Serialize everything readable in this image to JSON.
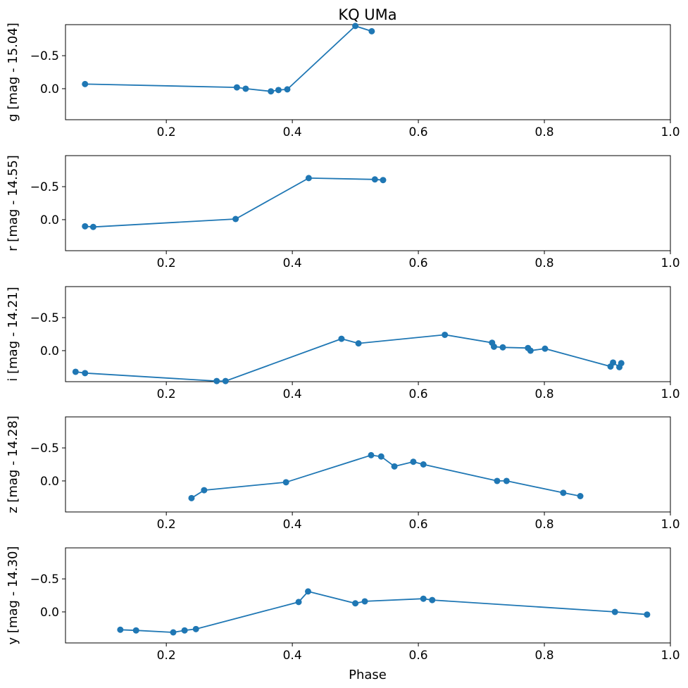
{
  "figure": {
    "title": "KQ UMa",
    "xlabel": "Phase"
  },
  "style": {
    "line_color": "#1f77b4",
    "axis_color": "#000000",
    "background": "#ffffff"
  },
  "chart_data": [
    {
      "type": "line",
      "band": "g",
      "ylabel": "g [mag - 15.04]",
      "xlim": [
        0.04,
        1.0
      ],
      "ylim": [
        0.47,
        -0.97
      ],
      "y_inverted": true,
      "xticks": [
        0.2,
        0.4,
        0.6,
        0.8,
        1.0
      ],
      "xtick_labels": [
        "0.2",
        "0.4",
        "0.6",
        "0.8",
        "1.0"
      ],
      "yticks": [
        -0.5,
        0.0
      ],
      "ytick_labels": [
        "−0.5",
        "0.0"
      ],
      "markers": true,
      "grid": false,
      "x": [
        0.071,
        0.312,
        0.326,
        0.366,
        0.378,
        0.392,
        0.5,
        0.526
      ],
      "y": [
        -0.07,
        -0.02,
        0.0,
        0.04,
        0.02,
        0.01,
        -0.95,
        -0.87
      ]
    },
    {
      "type": "line",
      "band": "r",
      "ylabel": "r [mag - 14.55]",
      "xlim": [
        0.04,
        1.0
      ],
      "ylim": [
        0.47,
        -0.97
      ],
      "y_inverted": true,
      "xticks": [
        0.2,
        0.4,
        0.6,
        0.8,
        1.0
      ],
      "xtick_labels": [
        "0.2",
        "0.4",
        "0.6",
        "0.8",
        "1.0"
      ],
      "yticks": [
        -0.5,
        0.0
      ],
      "ytick_labels": [
        "−0.5",
        "0.0"
      ],
      "markers": true,
      "grid": false,
      "x": [
        0.071,
        0.084,
        0.31,
        0.426,
        0.531,
        0.544
      ],
      "y": [
        0.1,
        0.11,
        -0.01,
        -0.63,
        -0.61,
        -0.6
      ]
    },
    {
      "type": "line",
      "band": "i",
      "ylabel": "i [mag - 14.21]",
      "xlim": [
        0.04,
        1.0
      ],
      "ylim": [
        0.47,
        -0.97
      ],
      "y_inverted": true,
      "xticks": [
        0.2,
        0.4,
        0.6,
        0.8,
        1.0
      ],
      "xtick_labels": [
        "0.2",
        "0.4",
        "0.6",
        "0.8",
        "1.0"
      ],
      "yticks": [
        -0.5,
        0.0
      ],
      "ytick_labels": [
        "−0.5",
        "0.0"
      ],
      "markers": true,
      "grid": false,
      "x": [
        0.056,
        0.071,
        0.28,
        0.294,
        0.478,
        0.505,
        0.642,
        0.717,
        0.72,
        0.734,
        0.774,
        0.778,
        0.801,
        0.905,
        0.909,
        0.919,
        0.922
      ],
      "y": [
        0.32,
        0.34,
        0.46,
        0.46,
        -0.18,
        -0.11,
        -0.24,
        -0.12,
        -0.06,
        -0.05,
        -0.04,
        0.0,
        -0.03,
        0.24,
        0.18,
        0.25,
        0.19
      ]
    },
    {
      "type": "line",
      "band": "z",
      "ylabel": "z [mag - 14.28]",
      "xlim": [
        0.04,
        1.0
      ],
      "ylim": [
        0.47,
        -0.97
      ],
      "y_inverted": true,
      "xticks": [
        0.2,
        0.4,
        0.6,
        0.8,
        1.0
      ],
      "xtick_labels": [
        "0.2",
        "0.4",
        "0.6",
        "0.8",
        "1.0"
      ],
      "yticks": [
        -0.5,
        0.0
      ],
      "ytick_labels": [
        "−0.5",
        "0.0"
      ],
      "markers": true,
      "grid": false,
      "x": [
        0.24,
        0.26,
        0.39,
        0.525,
        0.541,
        0.562,
        0.592,
        0.608,
        0.725,
        0.74,
        0.83,
        0.857
      ],
      "y": [
        0.26,
        0.14,
        0.02,
        -0.39,
        -0.37,
        -0.22,
        -0.29,
        -0.25,
        0.0,
        0.0,
        0.18,
        0.23
      ]
    },
    {
      "type": "line",
      "band": "y",
      "ylabel": "y [mag - 14.30]",
      "xlim": [
        0.04,
        1.0
      ],
      "ylim": [
        0.47,
        -0.97
      ],
      "y_inverted": true,
      "xticks": [
        0.2,
        0.4,
        0.6,
        0.8,
        1.0
      ],
      "xtick_labels": [
        "0.2",
        "0.4",
        "0.6",
        "0.8",
        "1.0"
      ],
      "yticks": [
        -0.5,
        0.0
      ],
      "ytick_labels": [
        "−0.5",
        "0.0"
      ],
      "markers": true,
      "grid": false,
      "x": [
        0.127,
        0.152,
        0.211,
        0.229,
        0.247,
        0.41,
        0.425,
        0.5,
        0.515,
        0.608,
        0.622,
        0.912,
        0.963
      ],
      "y": [
        0.27,
        0.28,
        0.31,
        0.28,
        0.26,
        -0.15,
        -0.31,
        -0.13,
        -0.16,
        -0.2,
        -0.18,
        0.0,
        0.04
      ]
    }
  ]
}
